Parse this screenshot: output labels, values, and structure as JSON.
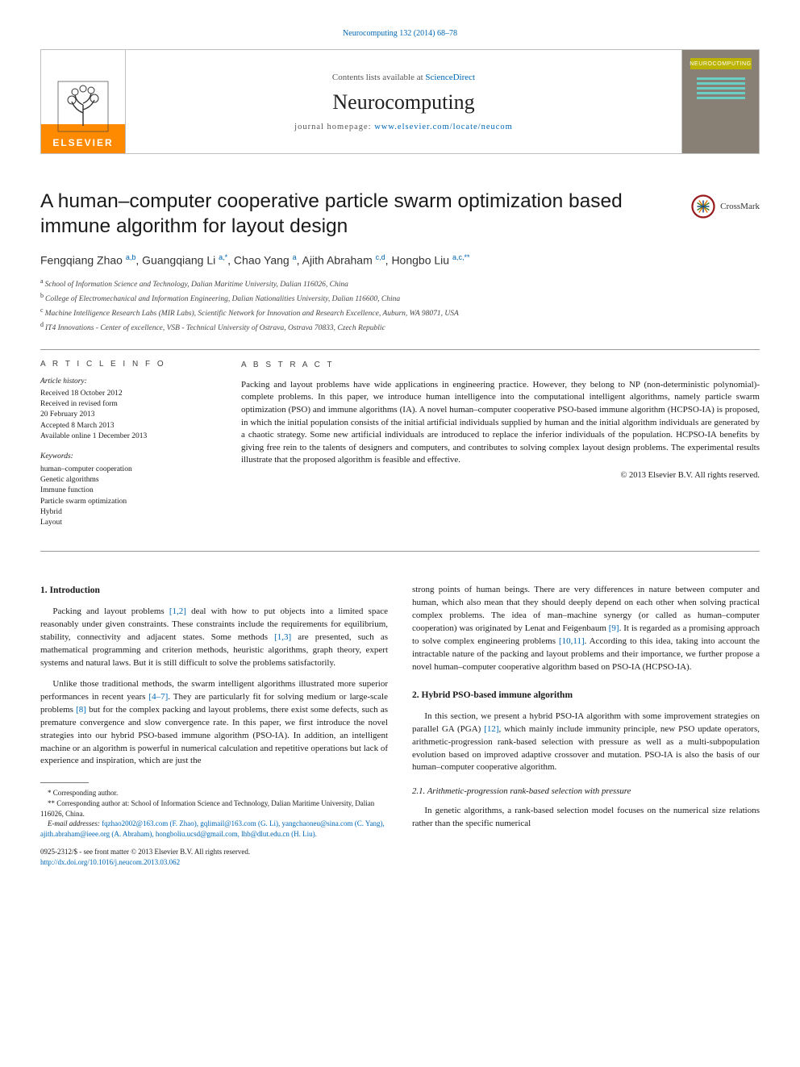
{
  "top_link": "Neurocomputing 132 (2014) 68–78",
  "header": {
    "contents_prefix": "Contents lists available at ",
    "contents_link": "ScienceDirect",
    "journal": "Neurocomputing",
    "homepage_prefix": "journal homepage: ",
    "homepage_url": "www.elsevier.com/locate/neucom",
    "elsevier": "ELSEVIER",
    "neuro_badge": "NEUROCOMPUTING"
  },
  "title": "A human–computer cooperative particle swarm optimization based immune algorithm for layout design",
  "crossmark": "CrossMark",
  "authors_html": "Fengqiang Zhao <sup>a,b</sup>, Guangqiang Li <sup>a,*</sup>, Chao Yang <sup>a</sup>, Ajith Abraham <sup>c,d</sup>, Hongbo Liu <sup>a,c,**</sup>",
  "affils": [
    {
      "s": "a",
      "t": "School of Information Science and Technology, Dalian Maritime University, Dalian 116026, China"
    },
    {
      "s": "b",
      "t": "College of Electromechanical and Information Engineering, Dalian Nationalities University, Dalian 116600, China"
    },
    {
      "s": "c",
      "t": "Machine Intelligence Research Labs (MIR Labs), Scientific Network for Innovation and Research Excellence, Auburn, WA 98071, USA"
    },
    {
      "s": "d",
      "t": "IT4 Innovations - Center of excellence, VSB - Technical University of Ostrava, Ostrava 70833, Czech Republic"
    }
  ],
  "article_info": {
    "head": "A R T I C L E  I N F O",
    "history_label": "Article history:",
    "history": [
      "Received 18 October 2012",
      "Received in revised form",
      "20 February 2013",
      "Accepted 8 March 2013",
      "Available online 1 December 2013"
    ],
    "keywords_label": "Keywords:",
    "keywords": [
      "human–computer cooperation",
      "Genetic algorithms",
      "Immune function",
      "Particle swarm optimization",
      "Hybrid",
      "Layout"
    ]
  },
  "abstract": {
    "head": "A B S T R A C T",
    "text": "Packing and layout problems have wide applications in engineering practice. However, they belong to NP (non-deterministic polynomial)-complete problems. In this paper, we introduce human intelligence into the computational intelligent algorithms, namely particle swarm optimization (PSO) and immune algorithms (IA). A novel human–computer cooperative PSO-based immune algorithm (HCPSO-IA) is proposed, in which the initial population consists of the initial artificial individuals supplied by human and the initial algorithm individuals are generated by a chaotic strategy. Some new artificial individuals are introduced to replace the inferior individuals of the population. HCPSO-IA benefits by giving free rein to the talents of designers and computers, and contributes to solving complex layout design problems. The experimental results illustrate that the proposed algorithm is feasible and effective.",
    "copyright": "© 2013 Elsevier B.V. All rights reserved."
  },
  "body": {
    "s1_head": "1.  Introduction",
    "s1_p1": "Packing and layout problems [1,2] deal with how to put objects into a limited space reasonably under given constraints. These constraints include the requirements for equilibrium, stability, connectivity and adjacent states. Some methods [1,3] are presented, such as mathematical programming and criterion methods, heuristic algorithms, graph theory, expert systems and natural laws. But it is still difficult to solve the problems satisfactorily.",
    "s1_p2": "Unlike those traditional methods, the swarm intelligent algorithms illustrated more superior performances in recent years [4–7]. They are particularly fit for solving medium or large-scale problems [8] but for the complex packing and layout problems, there exist some defects, such as premature convergence and slow convergence rate. In this paper, we first introduce the novel strategies into our hybrid PSO-based immune algorithm (PSO-IA). In addition, an intelligent machine or an algorithm is powerful in numerical calculation and repetitive operations but lack of experience and inspiration, which are just the",
    "s1_p3_right": "strong points of human beings. There are very differences in nature between computer and human, which also mean that they should deeply depend on each other when solving practical complex problems. The idea of man–machine synergy (or called as human–computer cooperation) was originated by Lenat and Feigenbaum [9]. It is regarded as a promising approach to solve complex engineering problems [10,11]. According to this idea, taking into account the intractable nature of the packing and layout problems and their importance, we further propose a novel human–computer cooperative algorithm based on PSO-IA (HCPSO-IA).",
    "s2_head": "2.  Hybrid PSO-based immune algorithm",
    "s2_p1": "In this section, we present a hybrid PSO-IA algorithm with some improvement strategies on parallel GA (PGA) [12], which mainly include immunity principle, new PSO update operators, arithmetic-progression rank-based selection with pressure as well as a multi-subpopulation evolution based on improved adaptive crossover and mutation. PSO-IA is also the basis of our human–computer cooperative algorithm.",
    "s21_head": "2.1.  Arithmetic-progression rank-based selection with pressure",
    "s21_p1": "In genetic algorithms, a rank-based selection model focuses on the numerical size relations rather than the specific numerical"
  },
  "footnotes": {
    "star": "* Corresponding author.",
    "dstar": "** Corresponding author at: School of Information Science and Technology, Dalian Maritime University, Dalian 116026, China.",
    "emails_label": "E-mail addresses: ",
    "emails": "fqzhao2002@163.com (F. Zhao), gqlimail@163.com (G. Li), yangchaoneu@sina.com (C. Yang), ajith.abraham@ieee.org (A. Abraham), hongboliu.ucsd@gmail.com, lhb@dlut.edu.cn (H. Liu)."
  },
  "issn": {
    "line1": "0925-2312/$ - see front matter © 2013 Elsevier B.V. All rights reserved.",
    "doi": "http://dx.doi.org/10.1016/j.neucom.2013.03.062"
  },
  "colors": {
    "link": "#0066b3",
    "elsevier_orange": "#ff8a00",
    "cover_bg": "#888074",
    "cover_badge": "#bcb300",
    "cover_lines": "#6ad0c7",
    "rule": "#9a9a9a"
  }
}
